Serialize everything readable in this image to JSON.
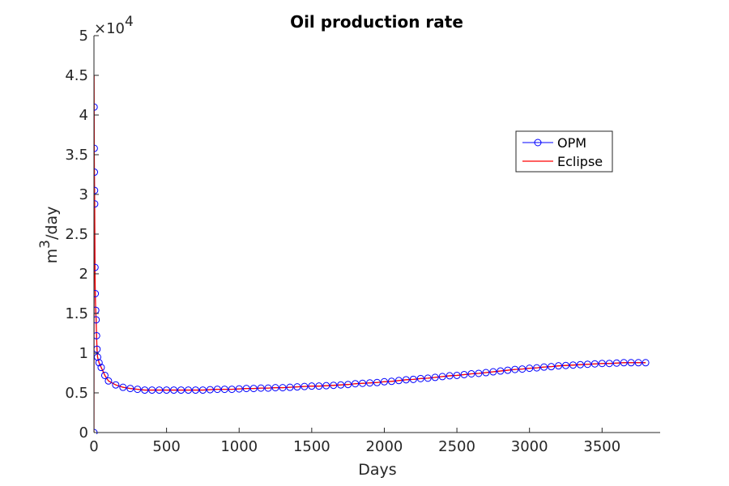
{
  "chart_data": {
    "type": "line",
    "title": "Oil production rate",
    "xlabel": "Days",
    "ylabel_base": "m",
    "ylabel_sup": "3",
    "ylabel_rest": "/day",
    "multiplier_base": "×10",
    "multiplier_exp": "4",
    "xlim": [
      0,
      3900
    ],
    "ylim": [
      0,
      50000
    ],
    "x_ticks": [
      0,
      500,
      1000,
      1500,
      2000,
      2500,
      3000,
      3500
    ],
    "y_ticks": [
      0,
      5000,
      10000,
      15000,
      20000,
      25000,
      30000,
      35000,
      40000,
      45000,
      50000
    ],
    "y_tick_labels": [
      "0",
      "0.5",
      "1",
      "1.5",
      "2",
      "2.5",
      "3",
      "3.5",
      "4",
      "4.5",
      "5"
    ],
    "grid": false,
    "legend_position": "upper-right",
    "series": [
      {
        "name": "OPM",
        "color": "#0000ff",
        "marker": "circle",
        "x": [
          0,
          1,
          2,
          3,
          4,
          5,
          7,
          9,
          12,
          15,
          18,
          21,
          25,
          35,
          50,
          75,
          100,
          150,
          200,
          250,
          300,
          350,
          400,
          450,
          500,
          550,
          600,
          650,
          700,
          750,
          800,
          850,
          900,
          950,
          1000,
          1050,
          1100,
          1150,
          1200,
          1250,
          1300,
          1350,
          1400,
          1450,
          1500,
          1550,
          1600,
          1650,
          1700,
          1750,
          1800,
          1850,
          1900,
          1950,
          2000,
          2050,
          2100,
          2150,
          2200,
          2250,
          2300,
          2350,
          2400,
          2450,
          2500,
          2550,
          2600,
          2650,
          2700,
          2750,
          2800,
          2850,
          2900,
          2950,
          3000,
          3050,
          3100,
          3150,
          3200,
          3250,
          3300,
          3350,
          3400,
          3450,
          3500,
          3550,
          3600,
          3650,
          3700,
          3750,
          3800
        ],
        "y": [
          0,
          41000,
          35800,
          32800,
          30500,
          28800,
          20800,
          17500,
          15400,
          14200,
          12200,
          10500,
          9500,
          8800,
          8200,
          7200,
          6500,
          6000,
          5700,
          5550,
          5450,
          5350,
          5350,
          5350,
          5350,
          5350,
          5350,
          5350,
          5350,
          5350,
          5400,
          5450,
          5450,
          5450,
          5500,
          5550,
          5550,
          5600,
          5600,
          5650,
          5650,
          5700,
          5750,
          5800,
          5850,
          5850,
          5900,
          5950,
          6000,
          6050,
          6150,
          6200,
          6250,
          6300,
          6400,
          6450,
          6550,
          6650,
          6700,
          6800,
          6850,
          6950,
          7050,
          7150,
          7200,
          7300,
          7400,
          7450,
          7550,
          7650,
          7750,
          7850,
          7950,
          8000,
          8100,
          8150,
          8250,
          8300,
          8400,
          8450,
          8500,
          8550,
          8600,
          8650,
          8700,
          8700,
          8750,
          8800,
          8800,
          8800,
          8800
        ]
      },
      {
        "name": "Eclipse",
        "color": "#ff0000",
        "marker": "none",
        "x": [
          0,
          1,
          2,
          3,
          4,
          5,
          7,
          9,
          12,
          15,
          18,
          21,
          25,
          35,
          50,
          75,
          100,
          150,
          200,
          250,
          300,
          350,
          400,
          450,
          500,
          550,
          600,
          650,
          700,
          750,
          800,
          850,
          900,
          950,
          1000,
          1050,
          1100,
          1150,
          1200,
          1250,
          1300,
          1350,
          1400,
          1450,
          1500,
          1550,
          1600,
          1650,
          1700,
          1750,
          1800,
          1850,
          1900,
          1950,
          2000,
          2050,
          2100,
          2150,
          2200,
          2250,
          2300,
          2350,
          2400,
          2450,
          2500,
          2550,
          2600,
          2650,
          2700,
          2750,
          2800,
          2850,
          2900,
          2950,
          3000,
          3050,
          3100,
          3150,
          3200,
          3250,
          3300,
          3350,
          3400,
          3450,
          3500,
          3550,
          3600,
          3650,
          3700,
          3750,
          3800
        ],
        "y": [
          0,
          45000,
          35800,
          32800,
          30500,
          28800,
          20800,
          17500,
          15400,
          14200,
          12200,
          10500,
          9500,
          8800,
          8200,
          7200,
          6500,
          6000,
          5700,
          5550,
          5450,
          5350,
          5350,
          5350,
          5350,
          5350,
          5350,
          5350,
          5350,
          5350,
          5400,
          5450,
          5450,
          5450,
          5500,
          5550,
          5550,
          5600,
          5600,
          5650,
          5650,
          5700,
          5750,
          5800,
          5850,
          5850,
          5900,
          5950,
          6000,
          6050,
          6150,
          6200,
          6250,
          6300,
          6400,
          6450,
          6550,
          6650,
          6700,
          6800,
          6850,
          6950,
          7050,
          7150,
          7200,
          7300,
          7400,
          7450,
          7550,
          7650,
          7750,
          7850,
          7950,
          8000,
          8100,
          8150,
          8250,
          8300,
          8400,
          8450,
          8500,
          8550,
          8600,
          8650,
          8700,
          8700,
          8750,
          8800,
          8800,
          8800,
          8800
        ]
      }
    ]
  }
}
